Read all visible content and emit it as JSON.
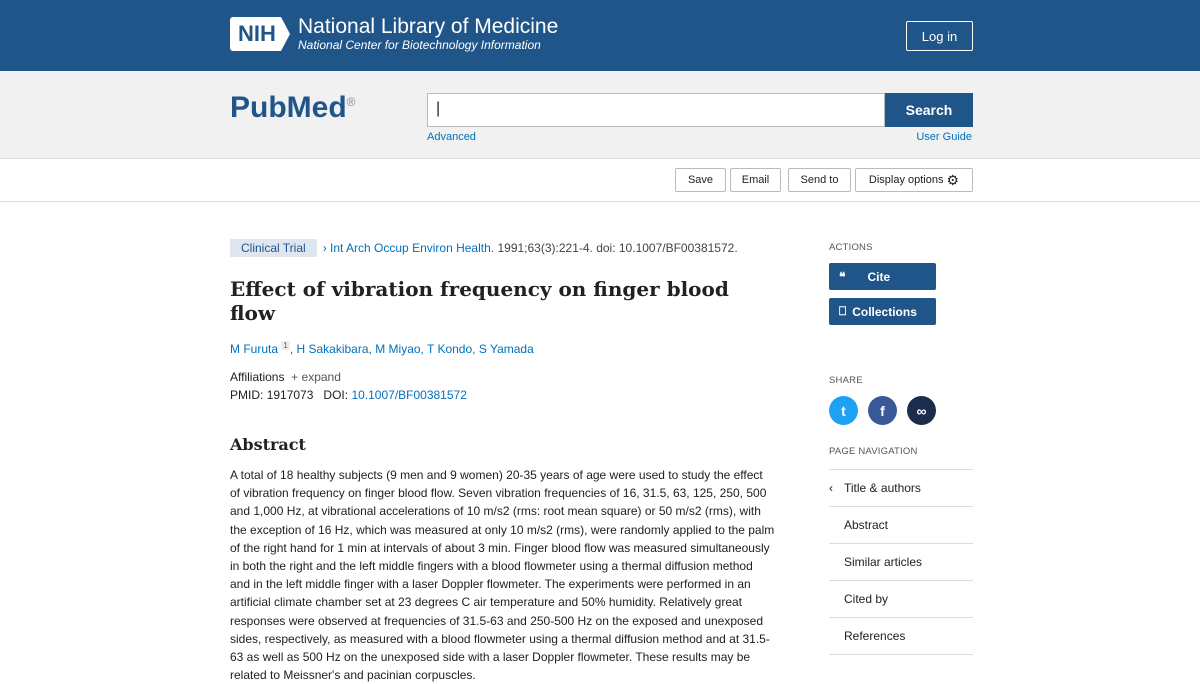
{
  "header": {
    "nih_badge": "NIH",
    "title": "National Library of Medicine",
    "subtitle": "National Center for Biotechnology Information",
    "login": "Log in"
  },
  "search": {
    "logo": "PubMed",
    "value": "",
    "button": "Search",
    "advanced": "Advanced",
    "user_guide": "User Guide"
  },
  "toolbar": {
    "save": "Save",
    "email": "Email",
    "send_to": "Send to",
    "display_options": "Display options"
  },
  "article": {
    "type": "Clinical Trial",
    "journal": "Int Arch Occup Environ Health.",
    "citation": "1991;63(3):221-4. doi: 10.1007/BF00381572.",
    "title": "Effect of vibration frequency on finger blood flow",
    "authors": [
      {
        "name": "M Furuta",
        "sup": "1"
      },
      {
        "name": "H Sakakibara"
      },
      {
        "name": "M Miyao"
      },
      {
        "name": "T Kondo"
      },
      {
        "name": "S Yamada"
      }
    ],
    "affiliations": "Affiliations",
    "expand": "expand",
    "pmid_label": "PMID:",
    "pmid": "1917073",
    "doi_label": "DOI:",
    "doi": "10.1007/BF00381572",
    "abstract_heading": "Abstract",
    "abstract": "A total of 18 healthy subjects (9 men and 9 women) 20-35 years of age were used to study the effect of vibration frequency on finger blood flow. Seven vibration frequencies of 16, 31.5, 63, 125, 250, 500 and 1,000 Hz, at vibrational accelerations of 10 m/s2 (rms: root mean square) or 50 m/s2 (rms), with the exception of 16 Hz, which was measured at only 10 m/s2 (rms), were randomly applied to the palm of the right hand for 1 min at intervals of about 3 min. Finger blood flow was measured simultaneously in both the right and the left middle fingers with a blood flowmeter using a thermal diffusion method and in the left middle finger with a laser Doppler flowmeter. The experiments were performed in an artificial climate chamber set at 23 degrees C air temperature and 50% humidity. Relatively great responses were observed at frequencies of 31.5-63 and 250-500 Hz on the exposed and unexposed sides, respectively, as measured with a blood flowmeter using a thermal diffusion method and at 31.5-63 as well as 500 Hz on the unexposed side with a laser Doppler flowmeter. These results may be related to Meissner's and pacinian corpuscles."
  },
  "sidebar": {
    "actions_label": "ACTIONS",
    "cite": "Cite",
    "collections": "Collections",
    "share_label": "SHARE",
    "page_nav_label": "PAGE NAVIGATION",
    "nav": [
      "Title & authors",
      "Abstract",
      "Similar articles",
      "Cited by",
      "References"
    ]
  },
  "colors": {
    "brand": "#20558a",
    "link": "#0071bc",
    "twitter": "#1da1f2",
    "facebook": "#3b5998",
    "link_share": "#1a2d4d"
  }
}
